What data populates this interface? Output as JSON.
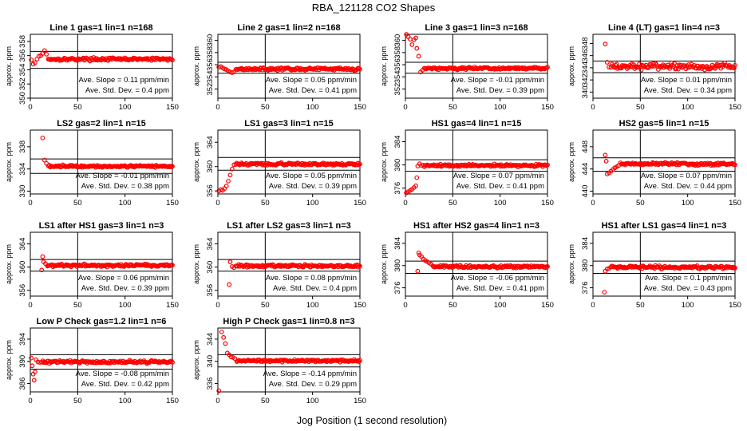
{
  "figure": {
    "title": "RBA_121128  CO2 Shapes",
    "xlabel": "Jog Position (1 second resolution)",
    "ylabel": "approx. ppm"
  },
  "chart_data": [
    {
      "type": "scatter",
      "title": "Line 1 gas=1 lin=1 n=168",
      "xlim": [
        0,
        150
      ],
      "xticks": [
        0,
        50,
        100,
        150
      ],
      "ylim": [
        350,
        359
      ],
      "yticks": [
        350,
        352,
        354,
        356,
        358
      ],
      "hlines": [
        356.6,
        354.2
      ],
      "slope_text": "Ave. Slope =  0.11  ppm/min",
      "sd_text": "Ave. Std. Dev. =  0.4  ppm",
      "flat": 355.5,
      "noise": 0.12,
      "early": [
        [
          1,
          355.4
        ],
        [
          3,
          354.8
        ],
        [
          5,
          355.0
        ],
        [
          7,
          355.5
        ],
        [
          9,
          355.9
        ],
        [
          11,
          356.0
        ],
        [
          13,
          356.3
        ],
        [
          15,
          356.7
        ],
        [
          17,
          356.2
        ]
      ],
      "start": 19
    },
    {
      "type": "scatter",
      "title": "Line 2 gas=1 lin=2 n=168",
      "xlim": [
        0,
        150
      ],
      "xticks": [
        0,
        50,
        100,
        150
      ],
      "ylim": [
        350.5,
        361
      ],
      "yticks": [
        352,
        354,
        356,
        358,
        360
      ],
      "hlines": [
        356.4,
        354.6
      ],
      "slope_text": "Ave. Slope =  0.05  ppm/min",
      "sd_text": "Ave. Std. Dev. =  0.41  ppm",
      "flat": 355.3,
      "noise": 0.12,
      "early": [
        [
          1,
          355.6
        ],
        [
          3,
          355.7
        ],
        [
          5,
          355.5
        ],
        [
          7,
          355.3
        ],
        [
          9,
          355.2
        ],
        [
          11,
          355.0
        ],
        [
          13,
          354.8
        ],
        [
          15,
          354.7
        ],
        [
          17,
          354.8
        ]
      ],
      "start": 19
    },
    {
      "type": "scatter",
      "title": "Line 3 gas=1 lin=3 n=168",
      "xlim": [
        0,
        150
      ],
      "xticks": [
        0,
        50,
        100,
        150
      ],
      "ylim": [
        350.5,
        361
      ],
      "yticks": [
        352,
        354,
        356,
        358,
        360
      ],
      "hlines": [
        356.4,
        354.6
      ],
      "slope_text": "Ave. Slope =  -0.01  ppm/min",
      "sd_text": "Ave. Std. Dev. =  0.39  ppm",
      "flat": 355.4,
      "noise": 0.12,
      "early": [
        [
          1,
          361.0
        ],
        [
          3,
          360.6
        ],
        [
          5,
          360.2
        ],
        [
          7,
          359.3
        ],
        [
          9,
          360.1
        ],
        [
          11,
          360.4
        ],
        [
          12,
          358.7
        ],
        [
          14,
          357.4
        ],
        [
          16,
          354.8
        ],
        [
          18,
          355.1
        ]
      ],
      "start": 20
    },
    {
      "type": "scatter",
      "title": "Line 4 (LT) gas=1 lin=4 n=3",
      "xlim": [
        0,
        150
      ],
      "xticks": [
        0,
        50,
        100,
        150
      ],
      "ylim": [
        339,
        349.5
      ],
      "yticks": [
        340,
        342,
        344,
        346,
        348
      ],
      "hlines": [
        345.1,
        343.2
      ],
      "slope_text": "Ave. Slope =  0.01  ppm/min",
      "sd_text": "Ave. Std. Dev. =  0.34  ppm",
      "flat": 344.2,
      "noise": 0.3,
      "early": [
        [
          13,
          347.9
        ],
        [
          15,
          344.9
        ],
        [
          17,
          344.1
        ]
      ],
      "start": 19
    },
    {
      "type": "scatter",
      "title": "LS2 gas=2 lin=1 n=15",
      "xlim": [
        0,
        150
      ],
      "xticks": [
        0,
        50,
        100,
        150
      ],
      "ylim": [
        329.5,
        341
      ],
      "yticks": [
        330,
        334,
        338
      ],
      "hlines": [
        335.8,
        333.2
      ],
      "slope_text": "Ave. Slope =  -0.01  ppm/min",
      "sd_text": "Ave. Std. Dev. =  0.38  ppm",
      "flat": 334.5,
      "noise": 0.12,
      "early": [
        [
          13,
          339.6
        ],
        [
          15,
          335.6
        ],
        [
          17,
          335.0
        ]
      ],
      "start": 19
    },
    {
      "type": "scatter",
      "title": "LS1 gas=3 lin=1 n=15",
      "xlim": [
        0,
        150
      ],
      "xticks": [
        0,
        50,
        100,
        150
      ],
      "ylim": [
        355.5,
        366
      ],
      "yticks": [
        356,
        360,
        364
      ],
      "hlines": [
        361.5,
        359.4
      ],
      "slope_text": "Ave. Slope =  0.05  ppm/min",
      "sd_text": "Ave. Std. Dev. =  0.39  ppm",
      "flat": 360.4,
      "noise": 0.12,
      "early": [
        [
          1,
          356.0
        ],
        [
          3,
          356.2
        ],
        [
          5,
          356.1
        ],
        [
          7,
          356.4
        ],
        [
          9,
          356.8
        ],
        [
          11,
          357.6
        ],
        [
          13,
          358.6
        ],
        [
          15,
          359.6
        ],
        [
          17,
          360.3
        ]
      ],
      "start": 19
    },
    {
      "type": "scatter",
      "title": "HS1 gas=4 lin=1 n=15",
      "xlim": [
        0,
        150
      ],
      "xticks": [
        0,
        50,
        100,
        150
      ],
      "ylim": [
        375,
        386
      ],
      "yticks": [
        376,
        380,
        384
      ],
      "hlines": [
        380.9,
        378.9
      ],
      "slope_text": "Ave. Slope =  0.07  ppm/min",
      "sd_text": "Ave. Std. Dev. =  0.41  ppm",
      "flat": 379.9,
      "noise": 0.12,
      "early": [
        [
          1,
          375.2
        ],
        [
          3,
          375.4
        ],
        [
          5,
          375.6
        ],
        [
          7,
          375.8
        ],
        [
          9,
          376.1
        ],
        [
          11,
          376.4
        ],
        [
          12,
          377.8
        ],
        [
          13,
          379.8
        ],
        [
          15,
          380.2
        ],
        [
          17,
          379.9
        ]
      ],
      "start": 19
    },
    {
      "type": "scatter",
      "title": "HS2 gas=5 lin=1 n=15",
      "xlim": [
        0,
        150
      ],
      "xticks": [
        0,
        50,
        100,
        150
      ],
      "ylim": [
        439.5,
        451
      ],
      "yticks": [
        440,
        444,
        448
      ],
      "hlines": [
        446.0,
        443.6
      ],
      "slope_text": "Ave. Slope =  0.07  ppm/min",
      "sd_text": "Ave. Std. Dev. =  0.44  ppm",
      "flat": 444.9,
      "noise": 0.14,
      "early": [
        [
          13,
          446.5
        ],
        [
          14,
          445.4
        ],
        [
          15,
          443.1
        ],
        [
          17,
          443.3
        ],
        [
          19,
          443.6
        ],
        [
          21,
          443.9
        ],
        [
          23,
          444.2
        ],
        [
          25,
          444.4
        ],
        [
          27,
          444.6
        ]
      ],
      "start": 29
    },
    {
      "type": "scatter",
      "title": "LS1 after HS1 gas=3 lin=1 n=3",
      "xlim": [
        0,
        150
      ],
      "xticks": [
        0,
        50,
        100,
        150
      ],
      "ylim": [
        355,
        366
      ],
      "yticks": [
        356,
        360,
        364
      ],
      "hlines": [
        361.3,
        359.3
      ],
      "slope_text": "Ave. Slope =  0.06  ppm/min",
      "sd_text": "Ave. Std. Dev. =  0.39  ppm",
      "flat": 360.3,
      "noise": 0.14,
      "early": [
        [
          12,
          359.5
        ],
        [
          13,
          361.8
        ],
        [
          14,
          360.9
        ],
        [
          16,
          360.6
        ]
      ],
      "start": 18
    },
    {
      "type": "scatter",
      "title": "LS1 after LS2 gas=3 lin=1 n=3",
      "xlim": [
        0,
        150
      ],
      "xticks": [
        0,
        50,
        100,
        150
      ],
      "ylim": [
        355,
        366
      ],
      "yticks": [
        356,
        360,
        364
      ],
      "hlines": [
        361.3,
        359.3
      ],
      "slope_text": "Ave. Slope =  0.08  ppm/min",
      "sd_text": "Ave. Std. Dev. =  0.4  ppm",
      "flat": 360.2,
      "noise": 0.14,
      "early": [
        [
          12,
          357.0
        ],
        [
          13,
          360.9
        ],
        [
          15,
          360.1
        ],
        [
          17,
          359.9
        ]
      ],
      "start": 19
    },
    {
      "type": "scatter",
      "title": "HS1 after HS2 gas=4 lin=1 n=3",
      "xlim": [
        0,
        150
      ],
      "xticks": [
        0,
        50,
        100,
        150
      ],
      "ylim": [
        374.5,
        386
      ],
      "yticks": [
        376,
        380,
        384
      ],
      "hlines": [
        380.8,
        378.6
      ],
      "slope_text": "Ave. Slope =  -0.06  ppm/min",
      "sd_text": "Ave. Std. Dev. =  0.41  ppm",
      "flat": 379.8,
      "noise": 0.14,
      "early": [
        [
          13,
          379.0
        ],
        [
          14,
          382.3
        ],
        [
          15,
          381.9
        ],
        [
          17,
          381.6
        ],
        [
          19,
          381.2
        ],
        [
          21,
          380.9
        ],
        [
          23,
          380.7
        ],
        [
          25,
          380.5
        ],
        [
          27,
          380.3
        ]
      ],
      "start": 29
    },
    {
      "type": "scatter",
      "title": "HS1 after LS1 gas=4 lin=1 n=3",
      "xlim": [
        0,
        150
      ],
      "xticks": [
        0,
        50,
        100,
        150
      ],
      "ylim": [
        374.5,
        386
      ],
      "yticks": [
        376,
        380,
        384
      ],
      "hlines": [
        380.8,
        378.6
      ],
      "slope_text": "Ave. Slope =  0.1  ppm/min",
      "sd_text": "Ave. Std. Dev. =  0.43  ppm",
      "flat": 379.7,
      "noise": 0.16,
      "early": [
        [
          12,
          375.2
        ],
        [
          13,
          379.0
        ],
        [
          15,
          379.4
        ],
        [
          17,
          379.5
        ]
      ],
      "start": 19
    },
    {
      "type": "scatter",
      "title": "Low P Check gas=1.2 lin=1 n=6",
      "xlim": [
        0,
        150
      ],
      "xticks": [
        0,
        50,
        100,
        150
      ],
      "ylim": [
        384.5,
        396
      ],
      "yticks": [
        386,
        390,
        394
      ],
      "hlines": [
        391.2,
        388.6
      ],
      "slope_text": "Ave. Slope =  -0.08  ppm/min",
      "sd_text": "Ave. Std. Dev. =  0.42  ppm",
      "flat": 389.9,
      "noise": 0.14,
      "early": [
        [
          1,
          390.6
        ],
        [
          2,
          389.2
        ],
        [
          3,
          387.7
        ],
        [
          4,
          386.6
        ],
        [
          5,
          388.1
        ],
        [
          6,
          390.3
        ],
        [
          8,
          389.9
        ],
        [
          10,
          389.8
        ]
      ],
      "start": 12
    },
    {
      "type": "scatter",
      "title": "High P Check gas=1 lin=0.8 n=3",
      "xlim": [
        0,
        150
      ],
      "xticks": [
        0,
        50,
        100,
        150
      ],
      "ylim": [
        334.5,
        346
      ],
      "yticks": [
        336,
        340,
        344
      ],
      "hlines": [
        341.2,
        339.0
      ],
      "slope_text": "Ave. Slope =  -0.14  ppm/min",
      "sd_text": "Ave. Std. Dev. =  0.29  ppm",
      "flat": 340.1,
      "noise": 0.12,
      "early": [
        [
          1,
          334.7
        ],
        [
          4,
          345.3
        ],
        [
          6,
          344.3
        ],
        [
          8,
          343.2
        ],
        [
          10,
          341.5
        ],
        [
          12,
          341.2
        ],
        [
          14,
          340.8
        ],
        [
          16,
          340.7
        ],
        [
          18,
          340.5
        ]
      ],
      "start": 20
    }
  ]
}
